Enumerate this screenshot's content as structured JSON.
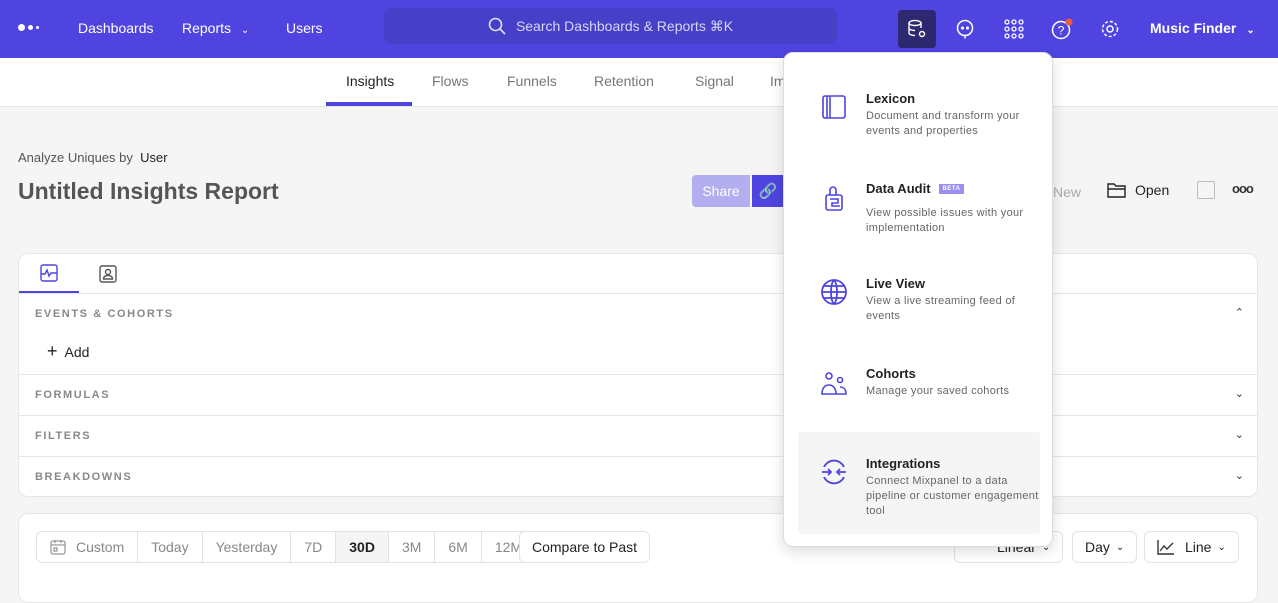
{
  "header": {
    "nav": [
      "Dashboards",
      "Reports",
      "Users"
    ],
    "search_placeholder": "Search Dashboards & Reports ⌘K",
    "project": "Music Finder",
    "accent": "#4f44e0",
    "notification_color": "#f05a3c"
  },
  "subnav": {
    "tabs": [
      "Insights",
      "Flows",
      "Funnels",
      "Retention",
      "Signal",
      "Im"
    ],
    "active": "Insights"
  },
  "report": {
    "analyze_label": "Analyze Uniques by",
    "analyze_value": "User",
    "title": "Untitled Insights Report",
    "share": "Share",
    "new": "New",
    "open": "Open"
  },
  "query": {
    "sections": [
      "EVENTS & COHORTS",
      "FORMULAS",
      "FILTERS",
      "BREAKDOWNS"
    ],
    "add": "Add"
  },
  "date_range": {
    "options": [
      "Custom",
      "Today",
      "Yesterday",
      "7D",
      "30D",
      "3M",
      "6M",
      "12M"
    ],
    "selected": "30D",
    "compare": "Compare to Past",
    "scale": "Linear",
    "interval": "Day",
    "chart_type": "Line"
  },
  "menu": {
    "items": [
      {
        "icon": "lexicon-icon",
        "title": "Lexicon",
        "desc": "Document and transform your events and properties"
      },
      {
        "icon": "data-audit-icon",
        "title": "Data Audit",
        "badge": "BETA",
        "desc": "View possible issues with your implementation"
      },
      {
        "icon": "globe-icon",
        "title": "Live View",
        "desc": "View a live streaming feed of events"
      },
      {
        "icon": "cohorts-icon",
        "title": "Cohorts",
        "desc": "Manage your saved cohorts"
      },
      {
        "icon": "integrations-icon",
        "title": "Integrations",
        "desc": "Connect Mixpanel to a data pipeline or customer engagement tool",
        "highlighted": true
      }
    ]
  }
}
